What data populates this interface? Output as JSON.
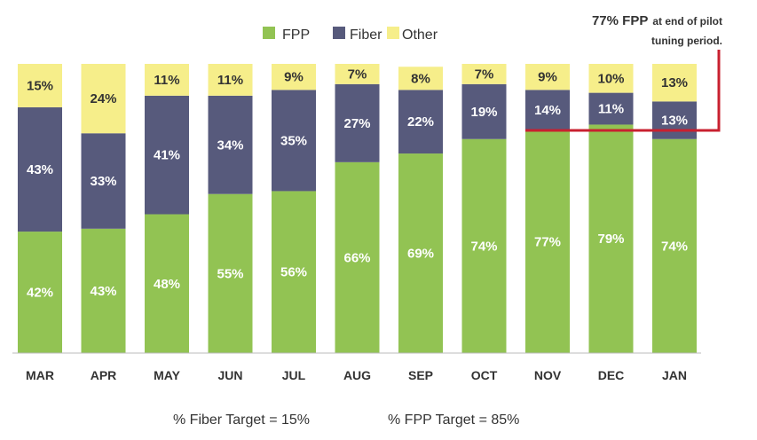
{
  "chart_data": {
    "type": "bar",
    "stacked": true,
    "categories": [
      "MAR",
      "APR",
      "MAY",
      "JUN",
      "JUL",
      "AUG",
      "SEP",
      "OCT",
      "NOV",
      "DEC",
      "JAN"
    ],
    "series": [
      {
        "name": "FPP",
        "color": "#92c353",
        "label_color": "#ffffff",
        "values": [
          42,
          43,
          48,
          55,
          56,
          66,
          69,
          74,
          77,
          79,
          74
        ]
      },
      {
        "name": "Fiber",
        "color": "#575a7c",
        "label_color": "#ffffff",
        "values": [
          43,
          33,
          41,
          34,
          35,
          27,
          22,
          19,
          14,
          11,
          13
        ]
      },
      {
        "name": "Other",
        "color": "#f6ee8a",
        "label_color": "#333333",
        "values": [
          15,
          24,
          11,
          11,
          9,
          7,
          8,
          7,
          9,
          10,
          13
        ]
      }
    ],
    "ylim": [
      0,
      100
    ],
    "xlabel": "",
    "ylabel": "",
    "legend": {
      "position": "top-center",
      "entries": [
        "FPP",
        "Fiber",
        "Other"
      ]
    },
    "reference_line": {
      "value": 77,
      "color": "#c8202f",
      "from_category": "NOV"
    },
    "annotation": {
      "bold_text": "77% FPP",
      "text_line1": "at end of pilot",
      "text_line2": "tuning period."
    },
    "footnotes": [
      "% Fiber Target = 15%",
      "% FPP Target = 85%"
    ]
  }
}
